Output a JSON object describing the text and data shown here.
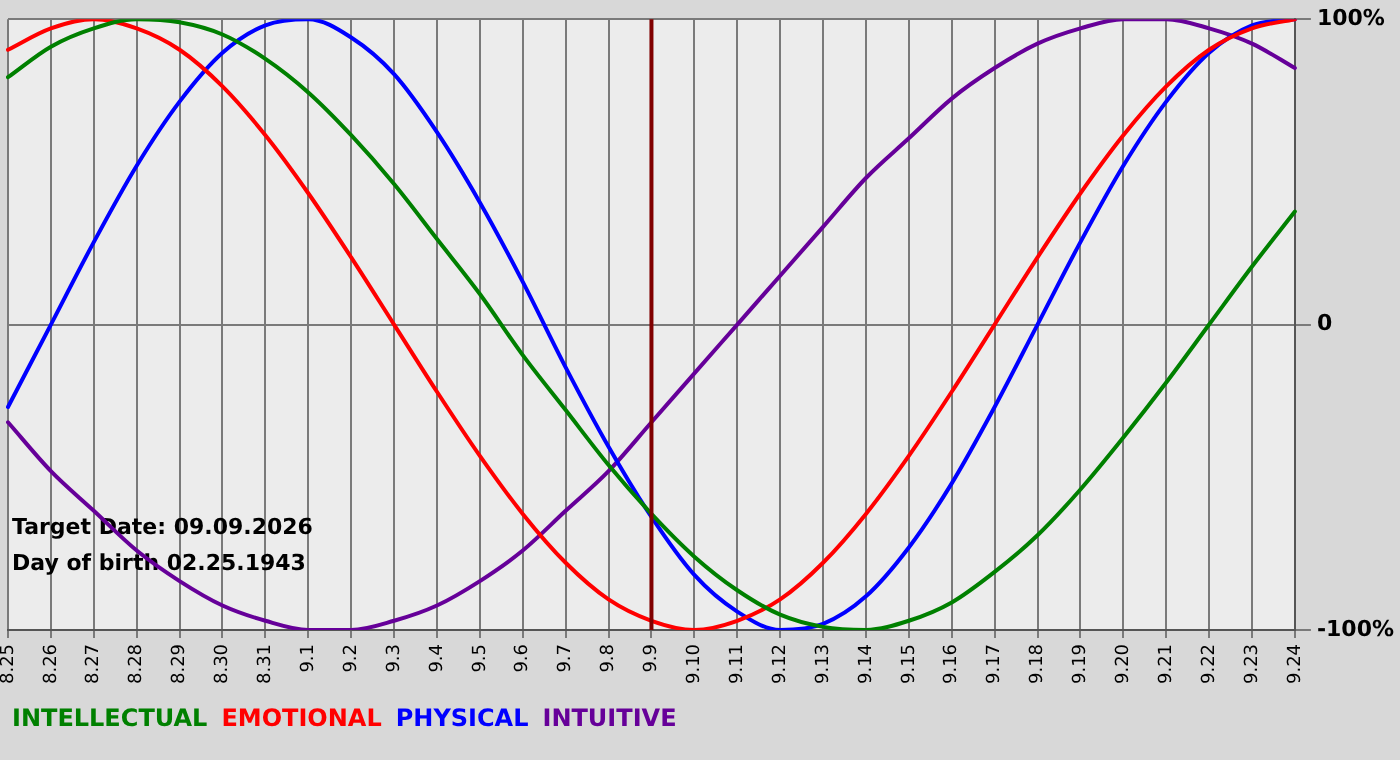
{
  "chart_data": {
    "type": "line",
    "categories": [
      "8.25",
      "8.26",
      "8.27",
      "8.28",
      "8.29",
      "8.30",
      "8.31",
      "9.1",
      "9.2",
      "9.3",
      "9.4",
      "9.5",
      "9.6",
      "9.7",
      "9.8",
      "9.9",
      "9.10",
      "9.11",
      "9.12",
      "9.13",
      "9.14",
      "9.15",
      "9.16",
      "9.17",
      "9.18",
      "9.19",
      "9.20",
      "9.21",
      "9.22",
      "9.23",
      "9.24"
    ],
    "series": [
      {
        "name": "INTELLECTUAL",
        "color": "#008000",
        "values": [
          81,
          91,
          97,
          100,
          99,
          95,
          87,
          76,
          62,
          46,
          28,
          10,
          -10,
          -28,
          -46,
          -62,
          -76,
          -87,
          -95,
          -99,
          -100,
          -97,
          -91,
          -81,
          -69,
          -54,
          -37,
          -19,
          0,
          19,
          37
        ]
      },
      {
        "name": "EMOTIONAL",
        "color": "#ff0000",
        "values": [
          90,
          97,
          100,
          97,
          90,
          78,
          62,
          43,
          22,
          0,
          -22,
          -43,
          -62,
          -78,
          -90,
          -97,
          -100,
          -97,
          -90,
          -78,
          -62,
          -43,
          -22,
          0,
          22,
          43,
          62,
          78,
          90,
          97,
          100
        ]
      },
      {
        "name": "PHYSICAL",
        "color": "#0000ff",
        "values": [
          -27,
          0,
          27,
          52,
          73,
          89,
          98,
          100,
          94,
          82,
          63,
          40,
          14,
          -14,
          -40,
          -63,
          -82,
          -94,
          -100,
          -98,
          -89,
          -73,
          -52,
          -27,
          0,
          27,
          52,
          73,
          89,
          98,
          100
        ]
      },
      {
        "name": "INTUITIVE",
        "color": "#660099",
        "values": [
          -32,
          -48,
          -61,
          -74,
          -84,
          -92,
          -97,
          -100,
          -100,
          -97,
          -92,
          -84,
          -74,
          -61,
          -48,
          -32,
          -16,
          0,
          16,
          32,
          48,
          61,
          74,
          84,
          92,
          97,
          100,
          100,
          97,
          92,
          84
        ]
      }
    ],
    "ylim": [
      -100,
      100
    ],
    "yticks": [
      {
        "value": -100,
        "label": "-100%"
      },
      {
        "value": 0,
        "label": "0"
      },
      {
        "value": 100,
        "label": "100%"
      }
    ],
    "ref_lines": [
      {
        "axis": "x",
        "value": "9.9",
        "color": "#800000"
      }
    ],
    "annotations": [
      "Target Date: 09.09.2026",
      "Day of birth 02.25.1943"
    ],
    "grid": true,
    "legend": "bottom",
    "marker": "none",
    "line_style": "solid"
  }
}
